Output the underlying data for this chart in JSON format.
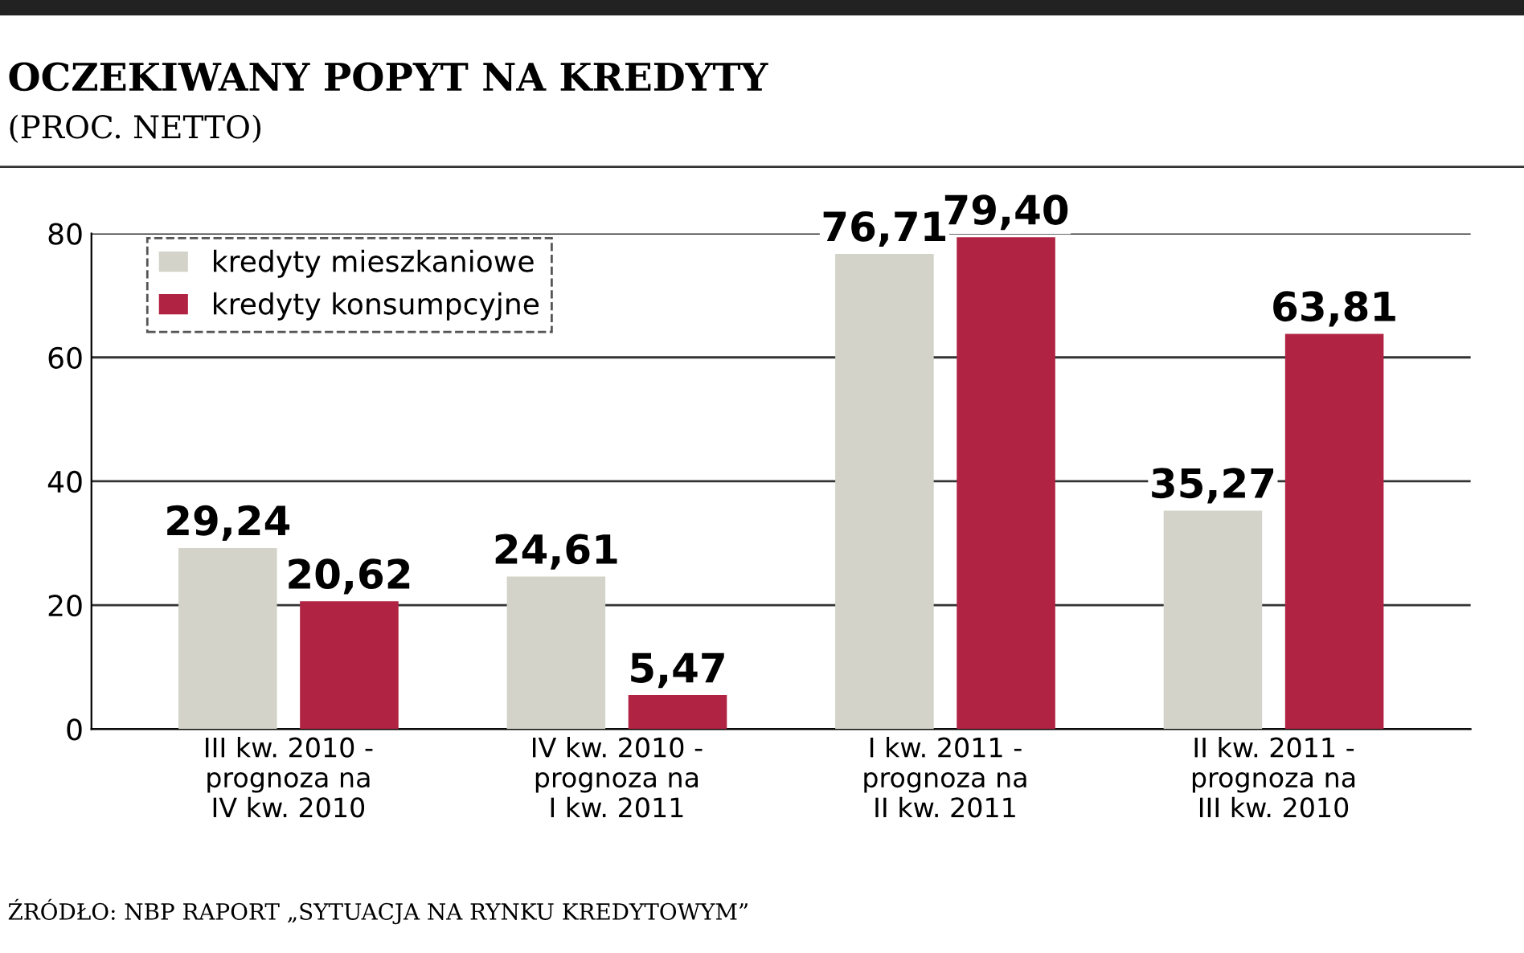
{
  "chart_data": {
    "type": "bar",
    "title": "OCZEKIWANY POPYT NA KREDYTY",
    "subtitle": "(PROC. NETTO)",
    "categories": [
      "III kw. 2010 -\nprognoza na\nIV kw. 2010",
      "IV kw. 2010 -\nprognoza na\nI kw. 2011",
      "I kw. 2011 -\nprognoza na\nII kw. 2011",
      "II kw. 2011 -\nprognoza na\nIII kw. 2010"
    ],
    "series": [
      {
        "name": "kredyty mieszkaniowe",
        "color": "#d3d3c9",
        "values": [
          29.24,
          24.61,
          76.71,
          35.27
        ],
        "value_labels": [
          "29,24",
          "24,61",
          "76,71",
          "35,27"
        ]
      },
      {
        "name": "kredyty konsumpcyjne",
        "color": "#b02343",
        "values": [
          20.62,
          5.47,
          79.4,
          63.81
        ],
        "value_labels": [
          "20,62",
          "5,47",
          "79,40",
          "63,81"
        ]
      }
    ],
    "ylim": [
      0,
      80
    ],
    "yticks": [
      0,
      20,
      40,
      60,
      80
    ],
    "grid": "y",
    "legend": "top left",
    "annotations": [
      "ŹRÓDŁO: NBP RAPORT „SYTUACJA NA RYNKU KREDYTOWYM”"
    ]
  }
}
